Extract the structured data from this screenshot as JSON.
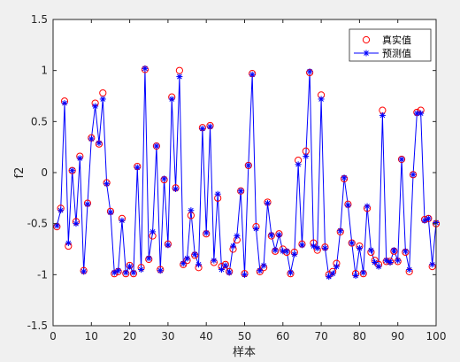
{
  "chart_data": {
    "type": "line",
    "xlabel": "样本",
    "ylabel": "f2",
    "xlim": [
      0,
      100
    ],
    "ylim": [
      -1.5,
      1.5
    ],
    "xticks": [
      "0",
      "10",
      "20",
      "30",
      "40",
      "50",
      "60",
      "70",
      "80",
      "90",
      "100"
    ],
    "yticks": [
      "-1.5",
      "-1",
      "-0.5",
      "0",
      "0.5",
      "1",
      "1.5"
    ],
    "grid": false,
    "legend_position": "top-right",
    "series": [
      {
        "name": "真实值",
        "color": "#ff0000",
        "marker": "circle",
        "line": "none",
        "values": [
          -0.53,
          -0.35,
          0.7,
          -0.72,
          0.02,
          -0.48,
          0.16,
          -0.96,
          -0.3,
          0.34,
          0.68,
          0.28,
          0.78,
          -0.1,
          -0.38,
          -0.99,
          -0.97,
          -0.45,
          -0.99,
          -0.91,
          -0.99,
          0.06,
          -0.93,
          1.01,
          -0.85,
          -0.62,
          0.26,
          -0.95,
          -0.07,
          -0.7,
          0.74,
          -0.15,
          1.0,
          -0.9,
          -0.86,
          -0.42,
          -0.81,
          -0.93,
          0.44,
          -0.6,
          0.46,
          -0.88,
          -0.25,
          -0.92,
          -0.9,
          -0.97,
          -0.75,
          -0.66,
          -0.18,
          -0.99,
          0.07,
          0.97,
          -0.53,
          -0.97,
          -0.93,
          -0.29,
          -0.62,
          -0.77,
          -0.6,
          -0.75,
          -0.78,
          -0.99,
          -0.78,
          0.12,
          -0.7,
          0.21,
          0.98,
          -0.69,
          -0.76,
          0.76,
          -0.73,
          -1.0,
          -0.97,
          -0.89,
          -0.58,
          -0.06,
          -0.31,
          -0.69,
          -0.99,
          -0.72,
          -0.99,
          -0.35,
          -0.78,
          -0.86,
          -0.9,
          0.61,
          -0.87,
          -0.87,
          -0.77,
          -0.87,
          0.13,
          -0.78,
          -0.97,
          -0.02,
          0.59,
          0.61,
          -0.46,
          -0.45,
          -0.92,
          -0.5
        ]
      },
      {
        "name": "预测值",
        "color": "#0000ff",
        "marker": "asterisk",
        "line": "solid",
        "values": [
          -0.52,
          -0.37,
          0.68,
          -0.69,
          0.02,
          -0.5,
          0.14,
          -0.97,
          -0.31,
          0.33,
          0.65,
          0.29,
          0.72,
          -0.11,
          -0.39,
          -0.98,
          -0.96,
          -0.47,
          -0.98,
          -0.92,
          -0.98,
          0.05,
          -0.95,
          1.02,
          -0.84,
          -0.58,
          0.26,
          -0.96,
          -0.06,
          -0.71,
          0.72,
          -0.16,
          0.94,
          -0.89,
          -0.84,
          -0.37,
          -0.8,
          -0.9,
          0.43,
          -0.59,
          0.45,
          -0.86,
          -0.21,
          -0.95,
          -0.91,
          -0.98,
          -0.72,
          -0.62,
          -0.18,
          -1.0,
          0.07,
          0.96,
          -0.55,
          -0.96,
          -0.91,
          -0.3,
          -0.61,
          -0.76,
          -0.61,
          -0.77,
          -0.77,
          -0.98,
          -0.8,
          0.08,
          -0.71,
          0.16,
          0.99,
          -0.72,
          -0.74,
          0.72,
          -0.74,
          -1.02,
          -0.99,
          -0.92,
          -0.57,
          -0.05,
          -0.32,
          -0.69,
          -1.01,
          -0.74,
          -0.98,
          -0.33,
          -0.76,
          -0.88,
          -0.92,
          0.56,
          -0.86,
          -0.88,
          -0.76,
          -0.86,
          0.13,
          -0.77,
          -0.95,
          -0.02,
          0.58,
          0.58,
          -0.47,
          -0.45,
          -0.9,
          -0.49
        ]
      }
    ]
  }
}
